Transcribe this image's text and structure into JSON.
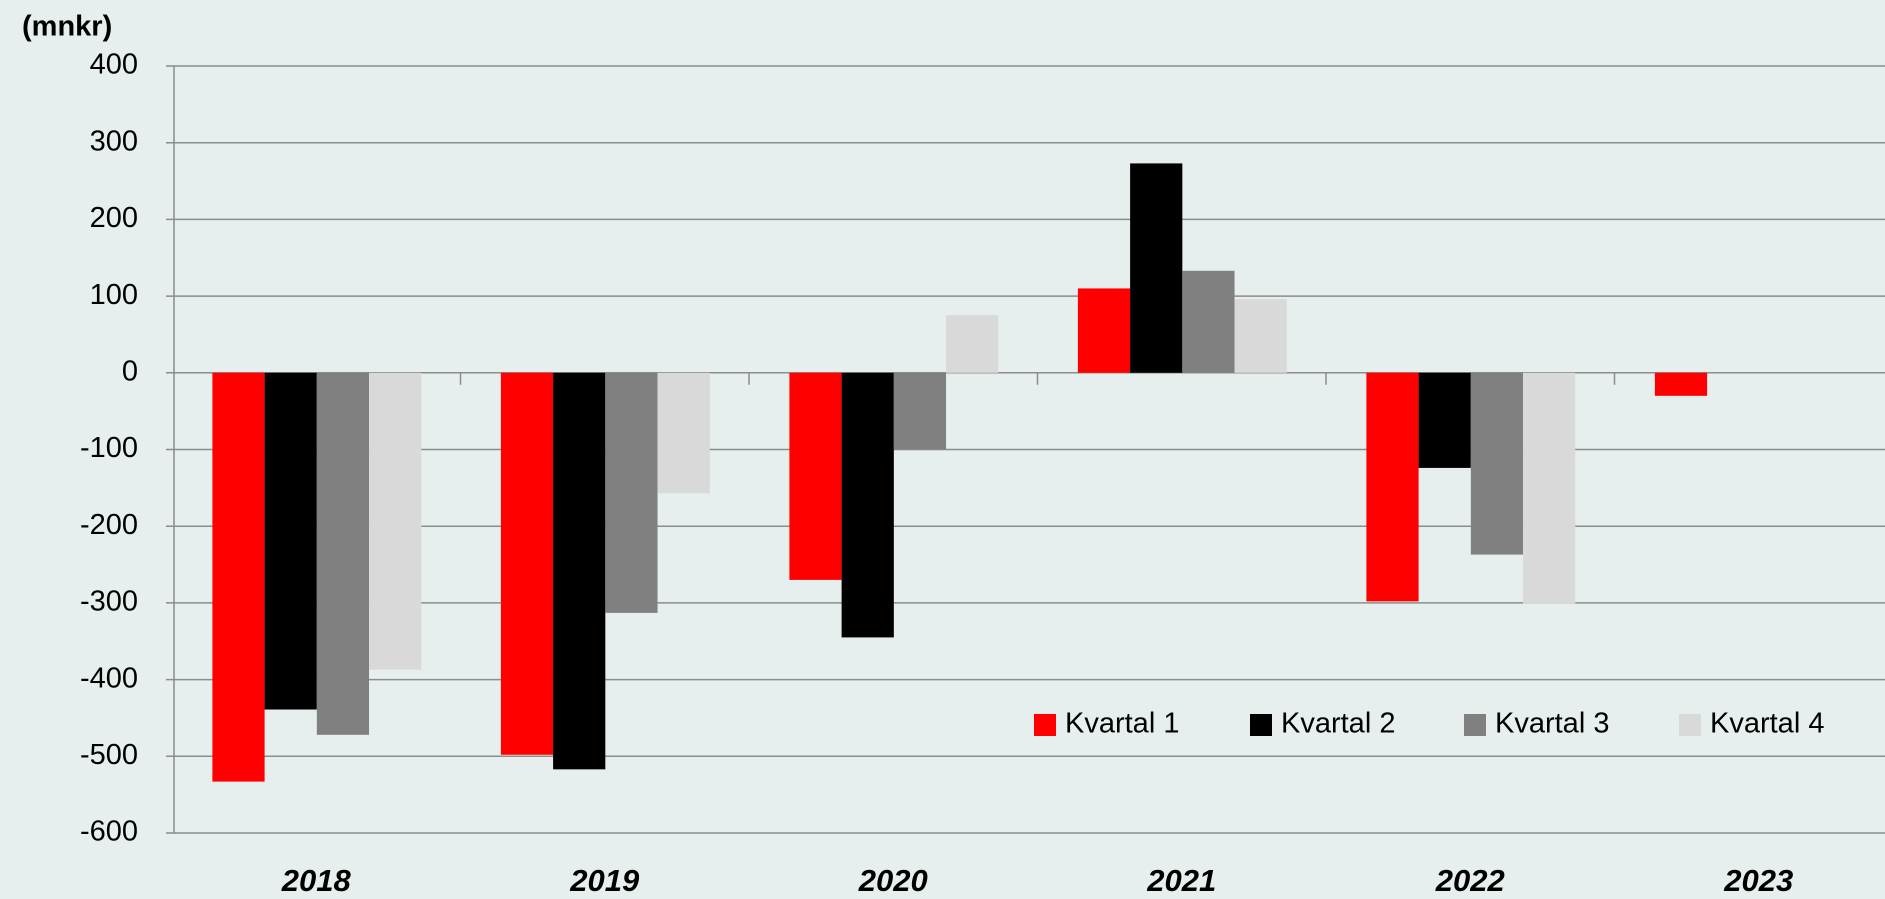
{
  "chart_data": {
    "type": "bar",
    "y_label": "(mnkr)",
    "categories": [
      "2018",
      "2019",
      "2020",
      "2021",
      "2022",
      "2023"
    ],
    "series": [
      {
        "name": "Kvartal 1",
        "color": "#ff0000",
        "values": [
          -533,
          -498,
          -270,
          110,
          -298,
          -30
        ]
      },
      {
        "name": "Kvartal 2",
        "color": "#000000",
        "values": [
          -439,
          -517,
          -345,
          273,
          -124,
          null
        ]
      },
      {
        "name": "Kvartal 3",
        "color": "#808080",
        "values": [
          -472,
          -313,
          -100,
          133,
          -237,
          null
        ]
      },
      {
        "name": "Kvartal 4",
        "color": "#d9d9d9",
        "values": [
          -387,
          -157,
          75,
          96,
          -301,
          null
        ]
      }
    ],
    "ylim": [
      -600,
      400
    ],
    "yticks": [
      -600,
      -500,
      -400,
      -300,
      -200,
      -100,
      0,
      100,
      200,
      300,
      400
    ],
    "grid": true,
    "legend": "lower right"
  }
}
